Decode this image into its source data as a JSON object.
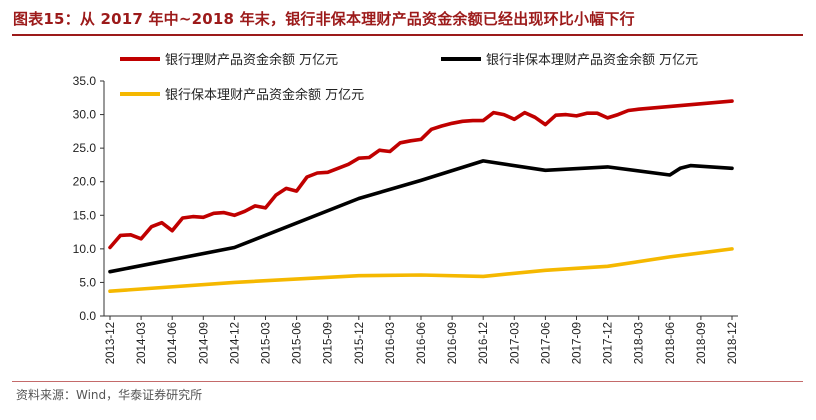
{
  "header": {
    "title": "图表15：从 2017 年中~2018 年末，银行非保本理财产品资金余额已经出现环比小幅下行"
  },
  "footer": {
    "source": "资料来源：Wind，华泰证券研究所"
  },
  "colors": {
    "title": "#9c1a1a",
    "series_red": "#c00000",
    "series_black": "#000000",
    "series_yellow": "#f5b800"
  },
  "chart_data": {
    "type": "line",
    "title": "",
    "xlabel": "",
    "ylabel": "",
    "ylim": [
      0,
      35
    ],
    "yticks": [
      "0.0",
      "5.0",
      "10.0",
      "15.0",
      "20.0",
      "25.0",
      "30.0",
      "35.0"
    ],
    "xticks": [
      "2013-12",
      "2014-03",
      "2014-06",
      "2014-09",
      "2014-12",
      "2015-03",
      "2015-06",
      "2015-09",
      "2015-12",
      "2016-03",
      "2016-06",
      "2016-09",
      "2016-12",
      "2017-03",
      "2017-06",
      "2017-09",
      "2017-12",
      "2018-03",
      "2018-06",
      "2018-09",
      "2018-12"
    ],
    "grid": false,
    "legend_position": "top-left",
    "series": [
      {
        "name": "银行理财产品资金余额 万亿元",
        "color": "#c00000",
        "x": [
          "2013-12",
          "2014-01",
          "2014-02",
          "2014-03",
          "2014-04",
          "2014-05",
          "2014-06",
          "2014-07",
          "2014-08",
          "2014-09",
          "2014-10",
          "2014-11",
          "2014-12",
          "2015-01",
          "2015-02",
          "2015-03",
          "2015-04",
          "2015-05",
          "2015-06",
          "2015-07",
          "2015-08",
          "2015-09",
          "2015-10",
          "2015-11",
          "2015-12",
          "2016-01",
          "2016-02",
          "2016-03",
          "2016-04",
          "2016-05",
          "2016-06",
          "2016-07",
          "2016-08",
          "2016-09",
          "2016-10",
          "2016-11",
          "2016-12",
          "2017-01",
          "2017-02",
          "2017-03",
          "2017-04",
          "2017-05",
          "2017-06",
          "2017-07",
          "2017-08",
          "2017-09",
          "2017-10",
          "2017-11",
          "2017-12",
          "2018-01",
          "2018-02",
          "2018-03",
          "2018-12"
        ],
        "values": [
          10.2,
          12.0,
          12.1,
          11.5,
          13.3,
          13.9,
          12.7,
          14.6,
          14.8,
          14.7,
          15.3,
          15.4,
          15.0,
          15.6,
          16.4,
          16.1,
          18.0,
          19.0,
          18.6,
          20.7,
          21.3,
          21.4,
          22.0,
          22.6,
          23.5,
          23.6,
          24.7,
          24.5,
          25.8,
          26.1,
          26.3,
          27.8,
          28.3,
          28.7,
          29.0,
          29.1,
          29.1,
          30.3,
          30.0,
          29.3,
          30.3,
          29.6,
          28.5,
          29.9,
          30.0,
          29.8,
          30.2,
          30.2,
          29.5,
          30.0,
          30.6,
          30.8,
          32.0
        ]
      },
      {
        "name": "银行非保本理财产品资金余额 万亿元",
        "color": "#000000",
        "x": [
          "2013-12",
          "2014-12",
          "2015-12",
          "2016-06",
          "2016-12",
          "2017-06",
          "2017-12",
          "2018-06",
          "2018-07",
          "2018-08",
          "2018-12"
        ],
        "values": [
          6.6,
          10.2,
          17.5,
          20.2,
          23.1,
          21.7,
          22.2,
          21.0,
          22.0,
          22.4,
          22.0
        ]
      },
      {
        "name": "银行保本理财产品资金余额 万亿元",
        "color": "#f5b800",
        "x": [
          "2013-12",
          "2014-12",
          "2015-12",
          "2016-06",
          "2016-12",
          "2017-06",
          "2017-12",
          "2018-06",
          "2018-12"
        ],
        "values": [
          3.7,
          5.0,
          6.0,
          6.1,
          5.9,
          6.8,
          7.4,
          8.8,
          10.0
        ]
      }
    ]
  }
}
